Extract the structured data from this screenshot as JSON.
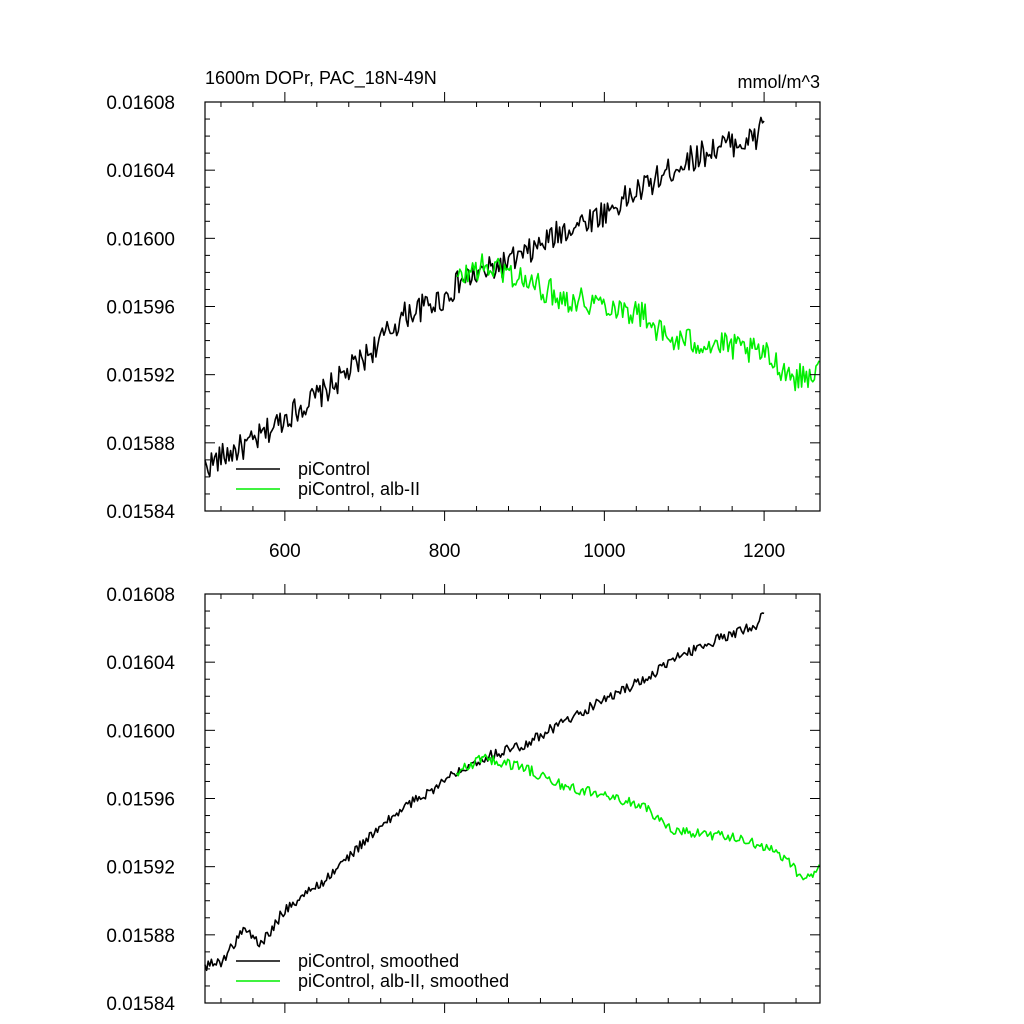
{
  "chart_data": [
    {
      "type": "line",
      "title": "1600m DOPr, PAC_18N-49N",
      "units": "mmol/m^3",
      "xlim": [
        500,
        1270
      ],
      "ylim": [
        0.01584,
        0.01608
      ],
      "xticks": [
        600,
        800,
        1000,
        1200
      ],
      "xtick_labels": [
        "600",
        "800",
        "1000",
        "1200"
      ],
      "yticks": [
        0.01584,
        0.01588,
        0.01592,
        0.01596,
        0.016,
        0.01604,
        0.01608
      ],
      "ytick_labels": [
        "0.01584",
        "0.01588",
        "0.01592",
        "0.01596",
        "0.01600",
        "0.01604",
        "0.01608"
      ],
      "legend_position": "bottom-left",
      "series": [
        {
          "name": "piControl",
          "color": "#000000",
          "noise": 8e-06,
          "x": [
            500,
            530,
            560,
            600,
            650,
            700,
            750,
            800,
            820,
            850,
            900,
            950,
            1000,
            1050,
            1100,
            1150,
            1190,
            1200
          ],
          "y": [
            0.015866,
            0.015874,
            0.01588,
            0.015895,
            0.01591,
            0.01593,
            0.015955,
            0.015965,
            0.015975,
            0.01598,
            0.01599,
            0.016005,
            0.016015,
            0.01603,
            0.016045,
            0.016055,
            0.016058,
            0.016074
          ]
        },
        {
          "name": "piControl, alb-II",
          "color": "#00ee00",
          "noise": 8e-06,
          "x": [
            815,
            840,
            870,
            900,
            950,
            1000,
            1050,
            1080,
            1100,
            1150,
            1200,
            1240,
            1270
          ],
          "y": [
            0.015975,
            0.015983,
            0.015982,
            0.015975,
            0.015965,
            0.015962,
            0.015955,
            0.01594,
            0.01594,
            0.015937,
            0.015932,
            0.015918,
            0.015922
          ]
        }
      ]
    },
    {
      "type": "line",
      "xlim": [
        500,
        1270
      ],
      "ylim": [
        0.01584,
        0.01608
      ],
      "xticks": [
        600,
        800,
        1000,
        1200
      ],
      "yticks": [
        0.01584,
        0.01588,
        0.01592,
        0.01596,
        0.016,
        0.01604,
        0.01608
      ],
      "ytick_labels": [
        "0.01584",
        "0.01588",
        "0.01592",
        "0.01596",
        "0.01600",
        "0.01604",
        "0.01608"
      ],
      "legend_position": "bottom-left",
      "series": [
        {
          "name": "piControl, smoothed",
          "color": "#000000",
          "noise": 3e-06,
          "x": [
            500,
            520,
            550,
            570,
            600,
            650,
            700,
            750,
            800,
            820,
            850,
            900,
            950,
            1000,
            1050,
            1100,
            1150,
            1190,
            1200
          ],
          "y": [
            0.015862,
            0.015864,
            0.015884,
            0.015874,
            0.015895,
            0.015912,
            0.015935,
            0.015955,
            0.01597,
            0.015978,
            0.015984,
            0.015992,
            0.016005,
            0.016018,
            0.01603,
            0.016045,
            0.016055,
            0.016062,
            0.01607
          ]
        },
        {
          "name": "piControl, alb-II, smoothed",
          "color": "#00ee00",
          "noise": 3e-06,
          "x": [
            815,
            850,
            900,
            950,
            1000,
            1050,
            1080,
            1100,
            1150,
            1200,
            1230,
            1250,
            1270
          ],
          "y": [
            0.015975,
            0.015984,
            0.015978,
            0.015967,
            0.015962,
            0.015955,
            0.015943,
            0.01594,
            0.015938,
            0.015932,
            0.015924,
            0.015911,
            0.01592
          ]
        }
      ]
    }
  ]
}
